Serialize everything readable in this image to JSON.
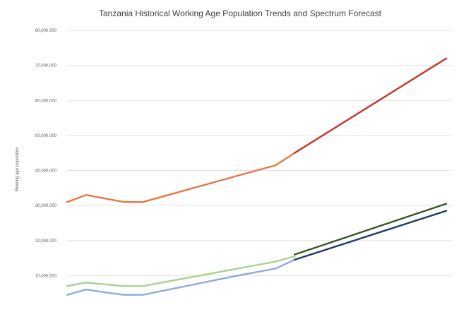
{
  "chart_data": {
    "type": "line",
    "title": "Tanzania Historical Working Age Population Trends and Spectrum Forecast",
    "xlabel": "",
    "ylabel": "Working age population",
    "ylim": [
      0,
      80000000
    ],
    "yticks": [
      0,
      10000000,
      20000000,
      30000000,
      40000000,
      50000000,
      60000000,
      70000000,
      80000000
    ],
    "ytick_labels": [
      "",
      "10,000,000",
      "20,000,000",
      "30,000,000",
      "40,000,000",
      "50,000,000",
      "60,000,000",
      "70,000,000",
      "80,000,000"
    ],
    "x_range": [
      0,
      20
    ],
    "grid": true,
    "legend": "none",
    "series": [
      {
        "color": "#e87745",
        "values": [
          [
            0,
            31000000
          ],
          [
            1,
            33000000
          ],
          [
            2,
            32000000
          ],
          [
            3,
            31000000
          ],
          [
            4,
            31000000
          ],
          [
            5,
            32500000
          ],
          [
            6,
            34000000
          ],
          [
            7,
            35500000
          ],
          [
            8,
            37000000
          ],
          [
            9,
            38500000
          ],
          [
            10,
            40000000
          ],
          [
            11,
            41500000
          ],
          [
            12,
            45000000
          ]
        ]
      },
      {
        "color": "#c0392b",
        "values": [
          [
            12,
            45000000
          ],
          [
            20,
            72000000
          ]
        ]
      },
      {
        "color": "#a9d18e",
        "values": [
          [
            0,
            7000000
          ],
          [
            1,
            8000000
          ],
          [
            2,
            7500000
          ],
          [
            3,
            7000000
          ],
          [
            4,
            7000000
          ],
          [
            5,
            8000000
          ],
          [
            6,
            9000000
          ],
          [
            7,
            10000000
          ],
          [
            8,
            11000000
          ],
          [
            9,
            12000000
          ],
          [
            10,
            13000000
          ],
          [
            11,
            14000000
          ],
          [
            12,
            15500000
          ]
        ]
      },
      {
        "color": "#8faadc",
        "values": [
          [
            0,
            4500000
          ],
          [
            1,
            6000000
          ],
          [
            2,
            5200000
          ],
          [
            3,
            4500000
          ],
          [
            4,
            4500000
          ],
          [
            5,
            5600000
          ],
          [
            6,
            6700000
          ],
          [
            7,
            7800000
          ],
          [
            8,
            8900000
          ],
          [
            9,
            10000000
          ],
          [
            10,
            11000000
          ],
          [
            11,
            12000000
          ],
          [
            12,
            14500000
          ]
        ]
      },
      {
        "color": "#375623",
        "values": [
          [
            12,
            16000000
          ],
          [
            20,
            30500000
          ]
        ]
      },
      {
        "color": "#1f3864",
        "values": [
          [
            12,
            14500000
          ],
          [
            20,
            28500000
          ]
        ]
      }
    ]
  }
}
